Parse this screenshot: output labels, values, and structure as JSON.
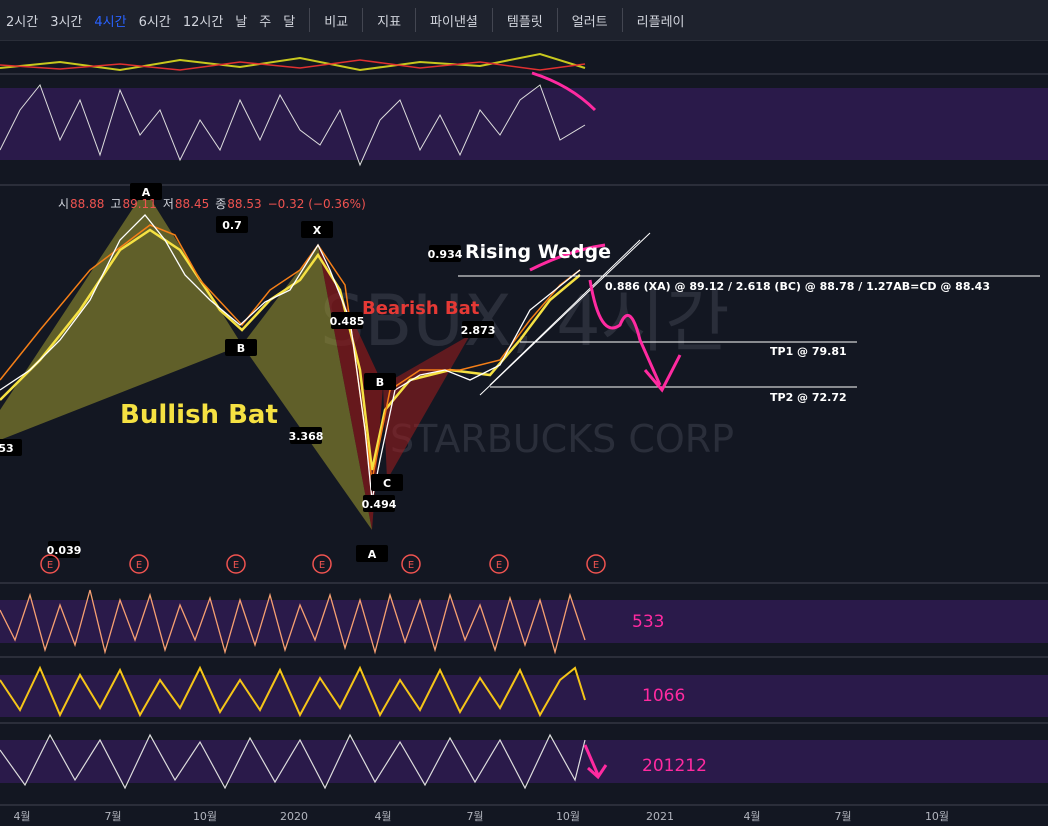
{
  "toolbar": {
    "intervals": [
      "2시간",
      "3시간",
      "4시간",
      "6시간",
      "12시간",
      "날",
      "주",
      "달"
    ],
    "buttons": [
      "비교",
      "지표",
      "파이낸셜",
      "템플릿",
      "얼러트",
      "리플레이"
    ]
  },
  "ohlc": {
    "open_label": "시",
    "open": "88.88",
    "high_label": "고",
    "high": "89.11",
    "low_label": "저",
    "low": "88.45",
    "close_label": "종",
    "close": "88.53",
    "change": "−0.32 (−0.36%)"
  },
  "watermark": {
    "symbol": "SBUX, 4시간",
    "name": "STARBUCKS CORP"
  },
  "annotations": {
    "bullish_bat": "Bullish Bat",
    "bearish_bat": "Bearish Bat",
    "rising_wedge": "Rising Wedge",
    "targets": "0.886 (XA) @ 89.12 / 2.618 (BC) @ 88.78 / 1.27AB=CD @ 88.43",
    "tp1": "TP1 @ 79.81",
    "tp2": "TP2 @ 72.72"
  },
  "points": [
    "A",
    "0.7",
    "X",
    "0.934",
    "0.485",
    "2.873",
    "B",
    "B",
    "3.368",
    "C",
    "0.494",
    "A",
    "53",
    "0.039"
  ],
  "earnings": "E",
  "panels": [
    "533",
    "1066",
    "201212"
  ],
  "x_axis": [
    "4월",
    "7월",
    "10월",
    "2020",
    "4월",
    "7월",
    "10월",
    "2021",
    "4월",
    "7월",
    "10월"
  ]
}
